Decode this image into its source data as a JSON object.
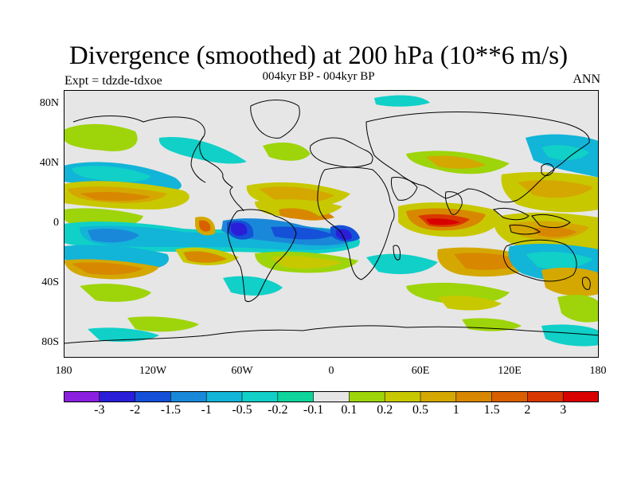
{
  "title": "Divergence (smoothed) at 200 hPa (10**6 m/s)",
  "subtitle": "004kyr BP - 004kyr BP",
  "experiment": "Expt = tdzde-tdxoe",
  "season": "ANN",
  "map": {
    "projection": "cylindrical-equidistant",
    "lat_range": [
      -90,
      90
    ],
    "lon_range": [
      -180,
      180
    ],
    "lat_labels": [
      "80N",
      "40N",
      "0",
      "40S",
      "80S"
    ],
    "lon_labels": [
      "180",
      "120W",
      "60W",
      "0",
      "60E",
      "120E",
      "180"
    ],
    "background_color": "#e6e6e6",
    "coastline_color": "#000000"
  },
  "colorbar": {
    "colors": [
      "#8c20e0",
      "#2a1ed8",
      "#1450d8",
      "#1a88d8",
      "#12b4d8",
      "#10d0c8",
      "#0cd49a",
      "#e6e6e6",
      "#9ed40a",
      "#c8c800",
      "#d4a800",
      "#d88800",
      "#d86000",
      "#d83800",
      "#d80000"
    ],
    "labels": [
      "-3",
      "-2",
      "-1.5",
      "-1",
      "-0.5",
      "-0.2",
      "-0.1",
      "0.1",
      "0.2",
      "0.5",
      "1",
      "1.5",
      "2",
      "3"
    ]
  }
}
